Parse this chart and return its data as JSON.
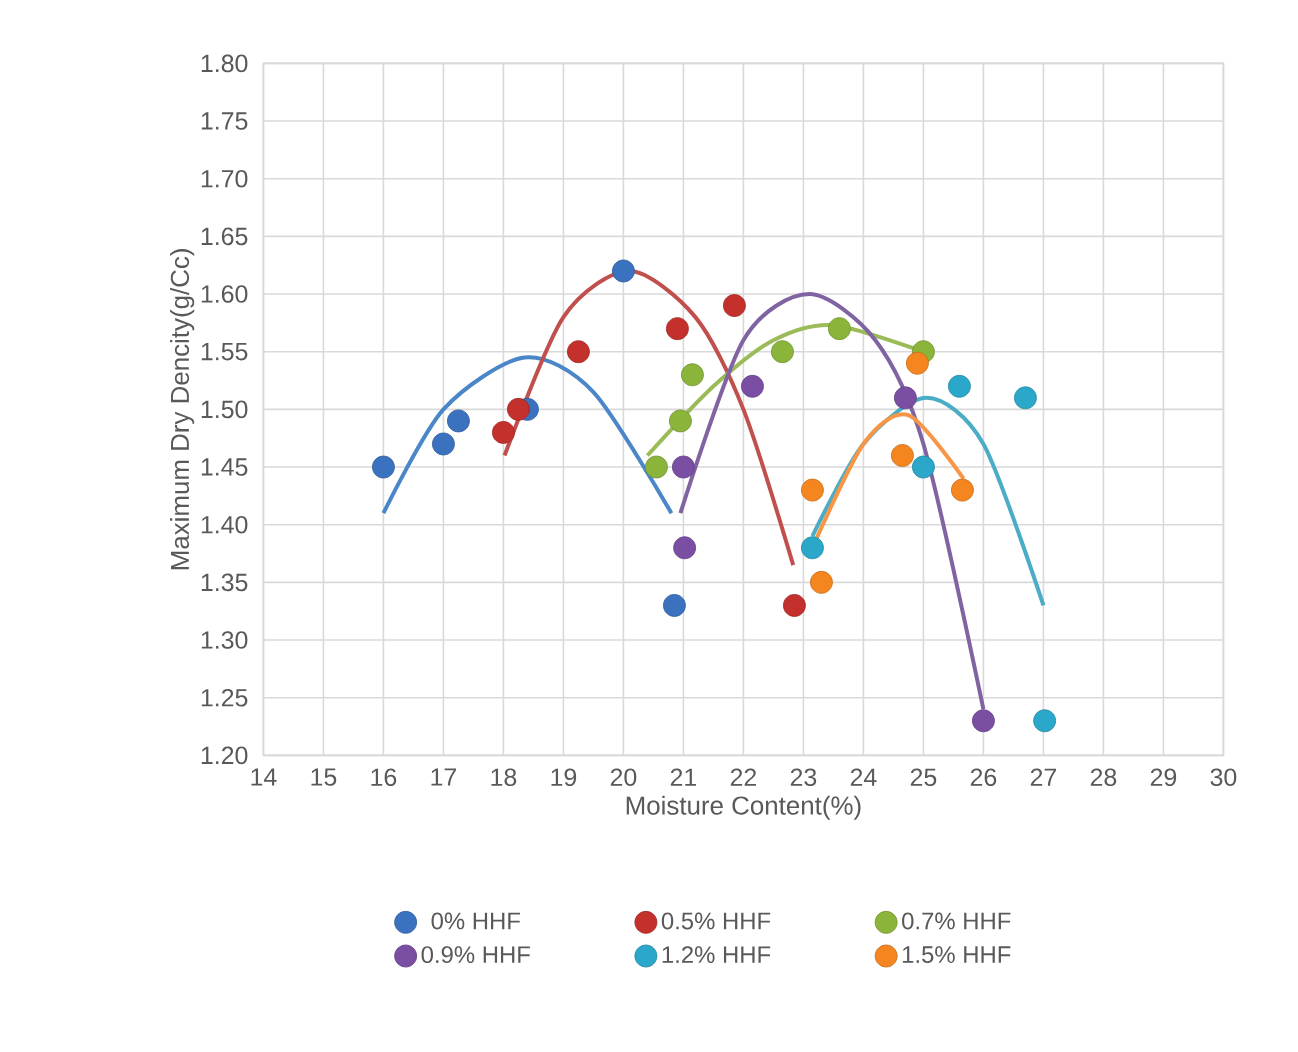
{
  "chart_data": {
    "type": "scatter",
    "xlabel": "Moisture Content(%)",
    "ylabel": "Maximum Dry Dencity(g/Cc)",
    "xlim": [
      14,
      30
    ],
    "xticks": [
      14,
      15,
      16,
      17,
      18,
      19,
      20,
      21,
      22,
      23,
      24,
      25,
      26,
      27,
      28,
      29,
      30
    ],
    "ylim": [
      1.2,
      1.8
    ],
    "yticks": [
      {
        "value": 1.2,
        "label": "1.20"
      },
      1.25,
      {
        "value": 1.3,
        "label": "1.30"
      },
      1.35,
      {
        "value": 1.4,
        "label": "1.40"
      },
      1.45,
      {
        "value": 1.5,
        "label": "1.50"
      },
      1.55,
      {
        "value": 1.6,
        "label": "1.60"
      },
      1.65,
      {
        "value": 1.7,
        "label": "1.70"
      },
      1.75,
      {
        "value": 1.8,
        "label": "1.80"
      }
    ],
    "grid": true,
    "legend": "bottom",
    "series": [
      {
        "type": "line",
        "marker": "none",
        "color": "#4a86c8",
        "x": [
          16,
          17,
          18.35,
          19.5,
          20.8
        ],
        "values": [
          1.41,
          1.5,
          1.545,
          1.515,
          1.41
        ]
      },
      {
        "type": "line",
        "marker": "none",
        "color": "#c0504d",
        "x": [
          18.02,
          19,
          20.1,
          21.2,
          22,
          22.83
        ],
        "values": [
          1.46,
          1.58,
          1.62,
          1.58,
          1.5,
          1.365
        ]
      },
      {
        "type": "line",
        "marker": "none",
        "color": "#9bbb59",
        "x": [
          20.4,
          21.5,
          22.5,
          23.5,
          25
        ],
        "values": [
          1.46,
          1.52,
          1.56,
          1.573,
          1.55
        ]
      },
      {
        "type": "line",
        "marker": "none",
        "color": "#8064a2",
        "x": [
          20.95,
          22,
          23.1,
          24.2,
          25,
          26
        ],
        "values": [
          1.41,
          1.56,
          1.6,
          1.56,
          1.47,
          1.24
        ]
      },
      {
        "type": "line",
        "marker": "none",
        "color": "#4bacc6",
        "x": [
          23.15,
          24,
          25.05,
          26,
          27
        ],
        "values": [
          1.39,
          1.47,
          1.51,
          1.47,
          1.33
        ]
      },
      {
        "type": "line",
        "marker": "none",
        "color": "#f79646",
        "x": [
          23.15,
          24,
          24.75,
          25.67
        ],
        "values": [
          1.38,
          1.47,
          1.495,
          1.44
        ]
      },
      {
        "name": "0% HHF",
        "marker": "circle",
        "color": "#3a72c0",
        "x": [
          16,
          17,
          17.25,
          18.4,
          20,
          20.85
        ],
        "values": [
          1.45,
          1.47,
          1.49,
          1.5,
          1.62,
          1.33
        ]
      },
      {
        "name": "0.5% HHF",
        "marker": "circle",
        "color": "#c4302b",
        "x": [
          18,
          18.25,
          19.25,
          20.9,
          21.85,
          22.85
        ],
        "values": [
          1.48,
          1.5,
          1.55,
          1.57,
          1.59,
          1.33
        ]
      },
      {
        "name": "0.7% HHF",
        "marker": "circle",
        "color": "#8ab53a",
        "x": [
          20.55,
          20.95,
          21.15,
          22.65,
          23.6,
          25
        ],
        "values": [
          1.45,
          1.49,
          1.53,
          1.55,
          1.57,
          1.55
        ]
      },
      {
        "name": "0.9% HHF",
        "marker": "circle",
        "color": "#7a4ea3",
        "x": [
          21,
          21.02,
          22.15,
          24.7,
          26
        ],
        "values": [
          1.45,
          1.38,
          1.52,
          1.51,
          1.23
        ]
      },
      {
        "name": "1.2% HHF",
        "marker": "circle",
        "color": "#2aa7c9",
        "x": [
          23.15,
          25,
          25.6,
          26.7,
          27.02
        ],
        "values": [
          1.38,
          1.45,
          1.52,
          1.51,
          1.23
        ]
      },
      {
        "name": "1.5% HHF",
        "marker": "circle",
        "color": "#f5861f",
        "x": [
          23.15,
          23.3,
          24.65,
          24.9,
          25.65
        ],
        "values": [
          1.43,
          1.35,
          1.46,
          1.54,
          1.43
        ]
      }
    ]
  }
}
